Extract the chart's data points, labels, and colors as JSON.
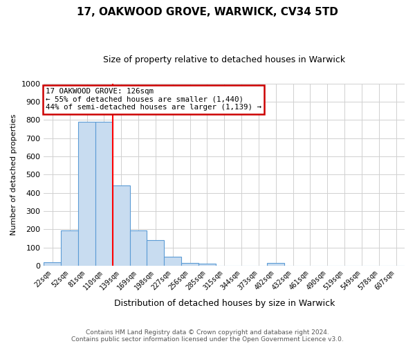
{
  "title": "17, OAKWOOD GROVE, WARWICK, CV34 5TD",
  "subtitle": "Size of property relative to detached houses in Warwick",
  "xlabel": "Distribution of detached houses by size in Warwick",
  "ylabel": "Number of detached properties",
  "bin_labels": [
    "22sqm",
    "52sqm",
    "81sqm",
    "110sqm",
    "139sqm",
    "169sqm",
    "198sqm",
    "227sqm",
    "256sqm",
    "285sqm",
    "315sqm",
    "344sqm",
    "373sqm",
    "402sqm",
    "432sqm",
    "461sqm",
    "490sqm",
    "519sqm",
    "549sqm",
    "578sqm",
    "607sqm"
  ],
  "bar_heights": [
    20,
    195,
    790,
    790,
    440,
    195,
    140,
    50,
    15,
    10,
    0,
    0,
    0,
    15,
    0,
    0,
    0,
    0,
    0,
    0,
    0
  ],
  "bar_color": "#c8dcf0",
  "bar_edge_color": "#5b9bd5",
  "vline_x_index": 3.5,
  "vline_color": "red",
  "annotation_line1": "17 OAKWOOD GROVE: 126sqm",
  "annotation_line2": "← 55% of detached houses are smaller (1,440)",
  "annotation_line3": "44% of semi-detached houses are larger (1,139) →",
  "annotation_box_color": "white",
  "annotation_box_edge_color": "#cc0000",
  "ylim": [
    0,
    1000
  ],
  "yticks": [
    0,
    100,
    200,
    300,
    400,
    500,
    600,
    700,
    800,
    900,
    1000
  ],
  "footer_line1": "Contains HM Land Registry data © Crown copyright and database right 2024.",
  "footer_line2": "Contains public sector information licensed under the Open Government Licence v3.0.",
  "background_color": "#ffffff",
  "grid_color": "#d0d0d0"
}
